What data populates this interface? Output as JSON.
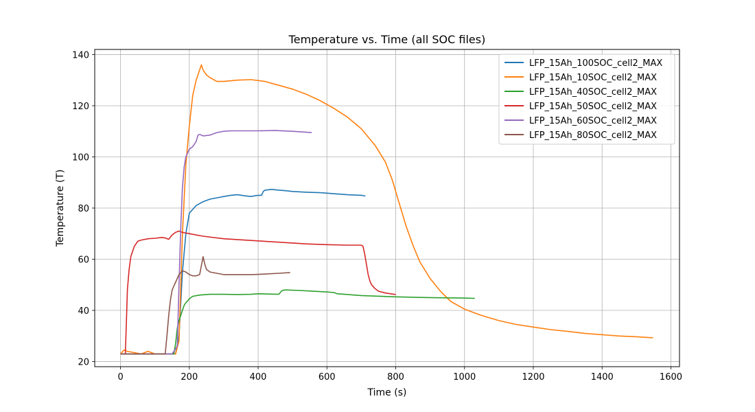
{
  "chart_data": {
    "type": "line",
    "title": "Temperature vs. Time (all SOC files)",
    "xlabel": "Time (s)",
    "ylabel": "Temperature (T)",
    "xlim": [
      -75,
      1625
    ],
    "ylim": [
      18,
      142
    ],
    "xticks": [
      0,
      200,
      400,
      600,
      800,
      1000,
      1200,
      1400,
      1600
    ],
    "yticks": [
      20,
      40,
      60,
      80,
      100,
      120,
      140
    ],
    "grid": true,
    "legend_position": "top-right",
    "series": [
      {
        "name": "LFP_15Ah_100SOC_cell2_MAX",
        "color": "#1f77b4",
        "x": [
          0,
          80,
          160,
          170,
          180,
          190,
          200,
          220,
          240,
          260,
          280,
          300,
          320,
          340,
          360,
          380,
          390,
          400,
          410,
          415,
          420,
          440,
          460,
          480,
          500,
          540,
          580,
          620,
          660,
          700,
          712
        ],
        "y": [
          23,
          23,
          23,
          30,
          55,
          70,
          78,
          81,
          82.5,
          83.5,
          84,
          84.5,
          85,
          85.2,
          84.8,
          84.5,
          84.8,
          85,
          85,
          86.5,
          87,
          87.3,
          87,
          86.8,
          86.5,
          86.2,
          86,
          85.6,
          85.2,
          85,
          84.7
        ]
      },
      {
        "name": "LFP_15Ah_10SOC_cell2_MAX",
        "color": "#ff7f0e",
        "x": [
          0,
          10,
          20,
          40,
          60,
          80,
          100,
          140,
          160,
          170,
          180,
          190,
          200,
          210,
          220,
          230,
          235,
          240,
          250,
          260,
          280,
          300,
          340,
          380,
          420,
          460,
          500,
          540,
          580,
          620,
          660,
          700,
          740,
          770,
          790,
          810,
          830,
          850,
          870,
          900,
          930,
          960,
          1000,
          1050,
          1100,
          1150,
          1200,
          1250,
          1300,
          1350,
          1400,
          1450,
          1500,
          1548
        ],
        "y": [
          23,
          24.5,
          24,
          23.5,
          23,
          24,
          23,
          23,
          23,
          28,
          70,
          97,
          112,
          124,
          130,
          134,
          136,
          134,
          132,
          131,
          129.5,
          129.5,
          130,
          130.2,
          129.5,
          128,
          126.5,
          124.5,
          122,
          119,
          115.5,
          111,
          104.5,
          98,
          91,
          82,
          73,
          65.5,
          59,
          52.5,
          47.5,
          43.5,
          40.5,
          38,
          36,
          34.5,
          33.5,
          32.5,
          31.8,
          31,
          30.5,
          30,
          29.7,
          29.3
        ]
      },
      {
        "name": "LFP_15Ah_40SOC_cell2_MAX",
        "color": "#2ca02c",
        "x": [
          0,
          100,
          155,
          160,
          165,
          170,
          175,
          180,
          185,
          190,
          200,
          210,
          230,
          260,
          300,
          340,
          380,
          400,
          460,
          470,
          480,
          520,
          560,
          600,
          620,
          630,
          700,
          800,
          900,
          1000,
          1030
        ],
        "y": [
          23,
          23,
          23,
          27,
          33,
          36,
          38,
          40,
          42,
          43,
          44.5,
          45.5,
          46,
          46.3,
          46.3,
          46.2,
          46.3,
          46.5,
          46.3,
          47.8,
          48,
          47.8,
          47.5,
          47.2,
          47,
          46.5,
          45.8,
          45.3,
          45,
          44.8,
          44.7
        ]
      },
      {
        "name": "LFP_15Ah_50SOC_cell2_MAX",
        "color": "#d62728",
        "x": [
          0,
          14,
          17,
          20,
          25,
          30,
          40,
          50,
          60,
          80,
          100,
          120,
          130,
          140,
          150,
          160,
          170,
          180,
          200,
          240,
          300,
          360,
          420,
          480,
          540,
          600,
          660,
          700,
          705,
          710,
          715,
          720,
          725,
          730,
          740,
          750,
          770,
          800
        ],
        "y": [
          23,
          23,
          35,
          48,
          56,
          61,
          65,
          67,
          67.5,
          68,
          68.2,
          68.5,
          68.3,
          67.8,
          69.5,
          70.5,
          71,
          70.5,
          70,
          69,
          68,
          67.5,
          67,
          66.5,
          66,
          65.7,
          65.5,
          65.5,
          65,
          62,
          58,
          54,
          51.5,
          50,
          48.5,
          47.5,
          46.8,
          46.2
        ]
      },
      {
        "name": "LFP_15Ah_60SOC_cell2_MAX",
        "color": "#9467bd",
        "x": [
          0,
          100,
          150,
          165,
          170,
          175,
          180,
          185,
          190,
          200,
          210,
          220,
          225,
          230,
          240,
          260,
          280,
          300,
          320,
          360,
          400,
          450,
          500,
          556
        ],
        "y": [
          23,
          23,
          23,
          26,
          50,
          72,
          88,
          96,
          100,
          103,
          104,
          106,
          108.5,
          108.8,
          108.2,
          108.5,
          109.5,
          110,
          110.2,
          110.2,
          110.2,
          110.3,
          110,
          109.5
        ]
      },
      {
        "name": "LFP_15Ah_80SOC_cell2_MAX",
        "color": "#8c564b",
        "x": [
          0,
          50,
          100,
          130,
          135,
          140,
          145,
          150,
          160,
          170,
          180,
          190,
          200,
          210,
          220,
          230,
          235,
          240,
          245,
          250,
          260,
          280,
          300,
          340,
          380,
          420,
          460,
          493
        ],
        "y": [
          23,
          23,
          23,
          23,
          30,
          38,
          44,
          48,
          51,
          54,
          55.5,
          55,
          54,
          53.5,
          53.5,
          54,
          57.5,
          61,
          58,
          56,
          55,
          54.5,
          54,
          54,
          54,
          54.2,
          54.5,
          54.8
        ]
      }
    ]
  }
}
